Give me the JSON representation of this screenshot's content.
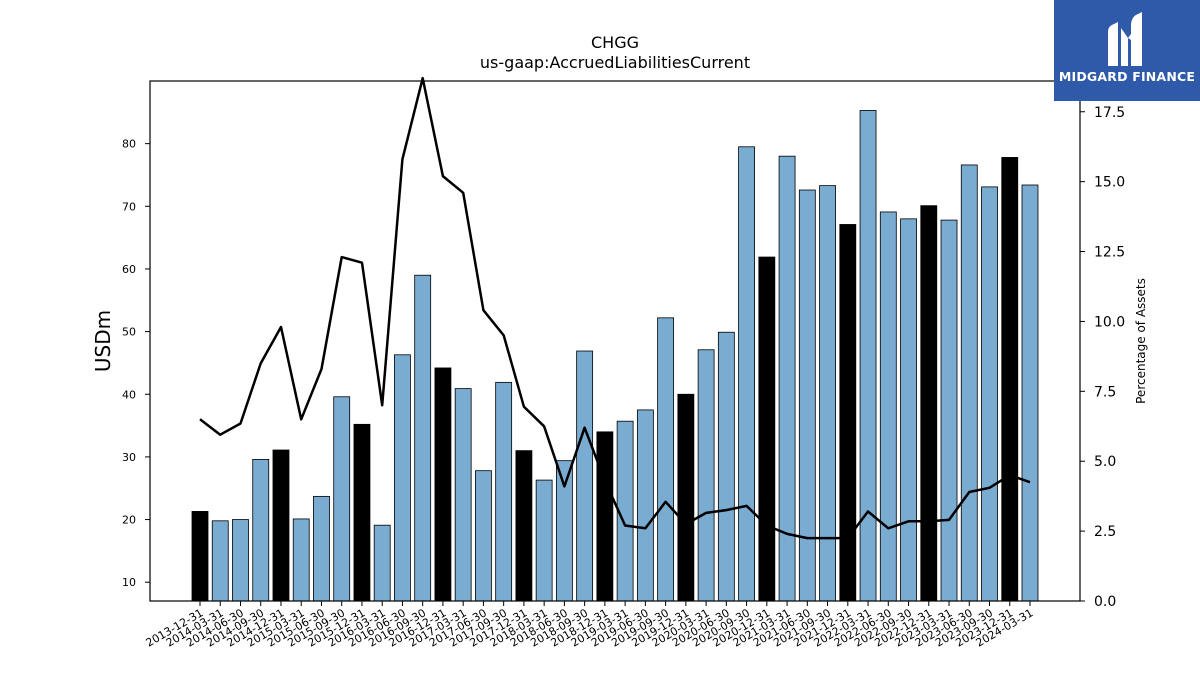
{
  "title": "CHGG",
  "subtitle": "us-gaap:AccruedLiabilitiesCurrent",
  "logo": {
    "brand": "MIDGARD FINANCE",
    "color": "#2e5aa9"
  },
  "chart_data": {
    "type": "bar",
    "title": "CHGG",
    "subtitle": "us-gaap:AccruedLiabilitiesCurrent",
    "ylabel": "USDm",
    "y2label": "Percentage of Assets",
    "ylim": [
      7,
      90
    ],
    "y2lim": [
      0,
      18.6
    ],
    "yticks": [
      10,
      20,
      30,
      40,
      50,
      60,
      70,
      80
    ],
    "y2ticks": [
      "0.0",
      "2.5",
      "5.0",
      "7.5",
      "10.0",
      "12.5",
      "15.0",
      "17.5"
    ],
    "grid": false,
    "colors": {
      "bar_q4": "#000000",
      "bar_other": "#7aabd0",
      "line": "#000000"
    },
    "categories": [
      "2013-12-31",
      "2014-03-31",
      "2014-06-30",
      "2014-09-30",
      "2014-12-31",
      "2015-03-31",
      "2015-06-30",
      "2015-09-30",
      "2015-12-31",
      "2016-03-31",
      "2016-06-30",
      "2016-09-30",
      "2016-12-31",
      "2017-03-31",
      "2017-06-30",
      "2017-09-30",
      "2017-12-31",
      "2018-03-31",
      "2018-06-30",
      "2018-09-30",
      "2018-12-31",
      "2019-03-31",
      "2019-06-30",
      "2019-09-30",
      "2019-12-31",
      "2020-03-31",
      "2020-06-30",
      "2020-09-30",
      "2020-12-31",
      "2021-03-31",
      "2021-06-30",
      "2021-09-30",
      "2021-12-31",
      "2022-03-31",
      "2022-06-30",
      "2022-09-30",
      "2022-12-31",
      "2023-03-31",
      "2023-06-30",
      "2023-09-30",
      "2023-12-31",
      "2024-03-31"
    ],
    "values": [
      21.3,
      19.8,
      20.0,
      29.6,
      31.1,
      20.1,
      23.7,
      39.6,
      35.2,
      19.1,
      46.3,
      59.0,
      44.2,
      40.9,
      27.8,
      41.9,
      31.0,
      26.3,
      29.4,
      46.9,
      34.0,
      35.7,
      37.5,
      52.2,
      40.0,
      47.1,
      49.9,
      79.5,
      61.9,
      78.0,
      72.6,
      73.3,
      67.1,
      85.3,
      69.1,
      68.0,
      70.1,
      67.8,
      76.6,
      73.1,
      77.8,
      73.4
    ],
    "q4_flags": [
      true,
      false,
      false,
      false,
      true,
      false,
      false,
      false,
      true,
      false,
      false,
      false,
      true,
      false,
      false,
      false,
      true,
      false,
      false,
      false,
      true,
      false,
      false,
      false,
      true,
      false,
      false,
      false,
      true,
      false,
      false,
      false,
      true,
      false,
      false,
      false,
      true,
      false,
      false,
      false,
      true,
      false
    ],
    "line_values": [
      6.5,
      5.95,
      6.35,
      8.5,
      9.8,
      6.5,
      8.3,
      12.3,
      12.1,
      7.0,
      15.8,
      18.7,
      15.2,
      14.6,
      10.4,
      9.5,
      6.95,
      6.25,
      4.1,
      6.2,
      4.3,
      2.7,
      2.6,
      3.55,
      2.75,
      3.15,
      3.25,
      3.4,
      2.7,
      2.4,
      2.25,
      2.25,
      2.25,
      3.2,
      2.6,
      2.85,
      2.85,
      2.9,
      3.9,
      4.05,
      4.5,
      4.25
    ]
  }
}
